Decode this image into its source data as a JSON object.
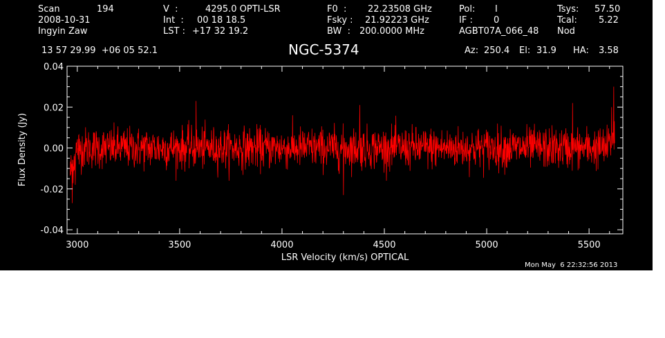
{
  "header": {
    "scan_label": "Scan",
    "scan_value": "194",
    "date": "2008-10-31",
    "observer": "Ingyin Zaw",
    "v_label": "V  :",
    "v_value": "4295.0 OPTI-LSR",
    "int_label": "Int  :",
    "int_value": "00 18 18.5",
    "lst_label": "LST : ",
    "lst_value": "+17 32 19.2",
    "f0_label": "F0  :",
    "f0_value": "22.23508 GHz",
    "fsky_label": "Fsky :",
    "fsky_value": "21.92223 GHz",
    "bw_label": "BW  :",
    "bw_value": "200.0000 MHz",
    "pol_label": "Pol:",
    "pol_value": "I",
    "if_label": "IF :",
    "if_value": "0",
    "project": "AGBT07A_066_48",
    "tsys_label": "Tsys:",
    "tsys_value": "57.50",
    "tcal_label": "Tcal:",
    "tcal_value": "5.22",
    "mode": "Nod",
    "coords": "13 57 29.99  +06 05 52.1",
    "source": "NGC-5374",
    "az_label": "Az:",
    "az_value": "250.4",
    "el_label": "El:",
    "el_value": "31.9",
    "ha_label": "HA:",
    "ha_value": "3.58"
  },
  "footer": {
    "timestamp": "Mon May  6 22:32:56 2013"
  },
  "colors": {
    "background": "#000000",
    "axes": "#ffffff",
    "trace": "#ff0000"
  },
  "chart_data": {
    "type": "line",
    "xlabel": "LSR Velocity (km/s) OPTICAL",
    "ylabel": "Flux Density (Jy)",
    "xlim": [
      2950,
      5665
    ],
    "ylim": [
      -0.042,
      0.04
    ],
    "x_ticks": [
      3000,
      3500,
      4000,
      4500,
      5000,
      5500
    ],
    "x_tick_labels": [
      "3000",
      "3500",
      "4000",
      "4500",
      "5000",
      "5500"
    ],
    "y_ticks": [
      -0.04,
      -0.02,
      0.0,
      0.02,
      0.04
    ],
    "y_tick_labels": [
      "-0.04",
      "-0.02",
      "0.00",
      "0.02",
      "0.04"
    ],
    "grid": false,
    "series": [
      {
        "color": "#ff0000",
        "x_start": 2965,
        "x_end": 5625,
        "n_points": 1800,
        "noise_rms_jy": 0.005,
        "mean_flux_jy": 0.0,
        "features": [
          {
            "x": 2975,
            "y": -0.027
          },
          {
            "x": 2990,
            "y": -0.018
          },
          {
            "x": 3010,
            "y": -0.008
          },
          {
            "x": 3580,
            "y": 0.023
          },
          {
            "x": 4300,
            "y": -0.023
          },
          {
            "x": 4380,
            "y": 0.021
          },
          {
            "x": 5420,
            "y": 0.022
          },
          {
            "x": 5610,
            "y": 0.02
          },
          {
            "x": 5620,
            "y": 0.03
          }
        ]
      }
    ]
  }
}
